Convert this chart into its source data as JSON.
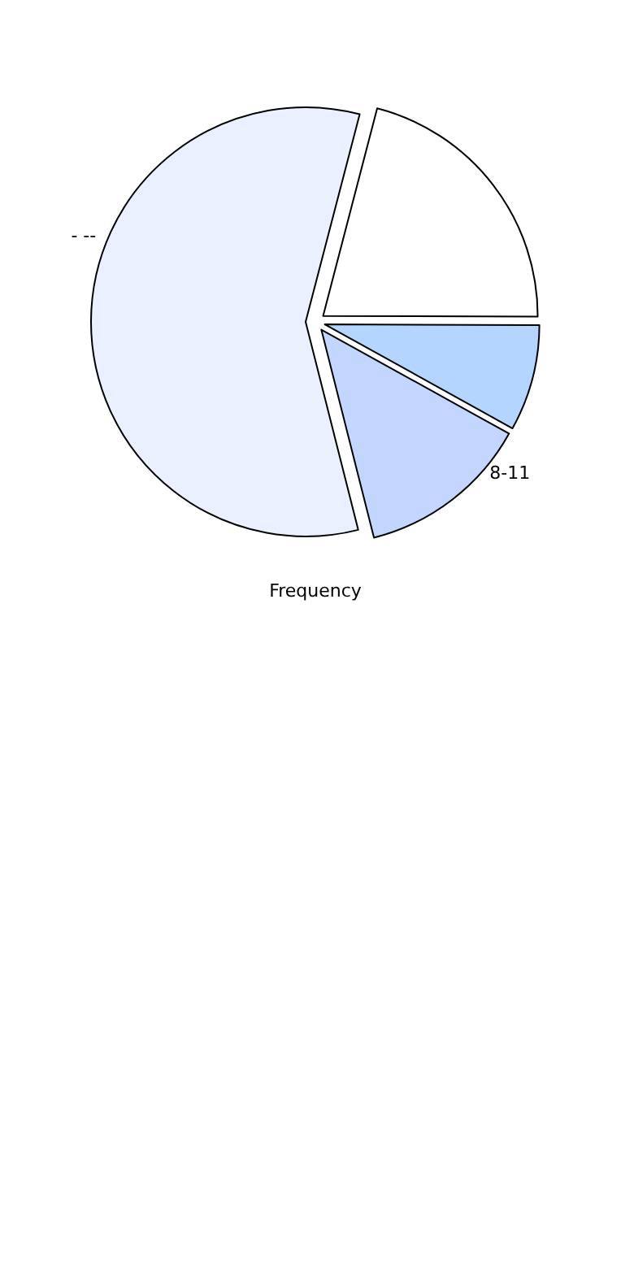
{
  "chart_data": {
    "type": "pie",
    "xlabel": "Frequency",
    "categories": [
      null,
      null,
      "8-11",
      "- --"
    ],
    "values": [
      21,
      8,
      13,
      58
    ],
    "colors": [
      "#ffffff",
      "#b3d5ff",
      "#c3d6ff",
      "#eaf0ff"
    ]
  }
}
